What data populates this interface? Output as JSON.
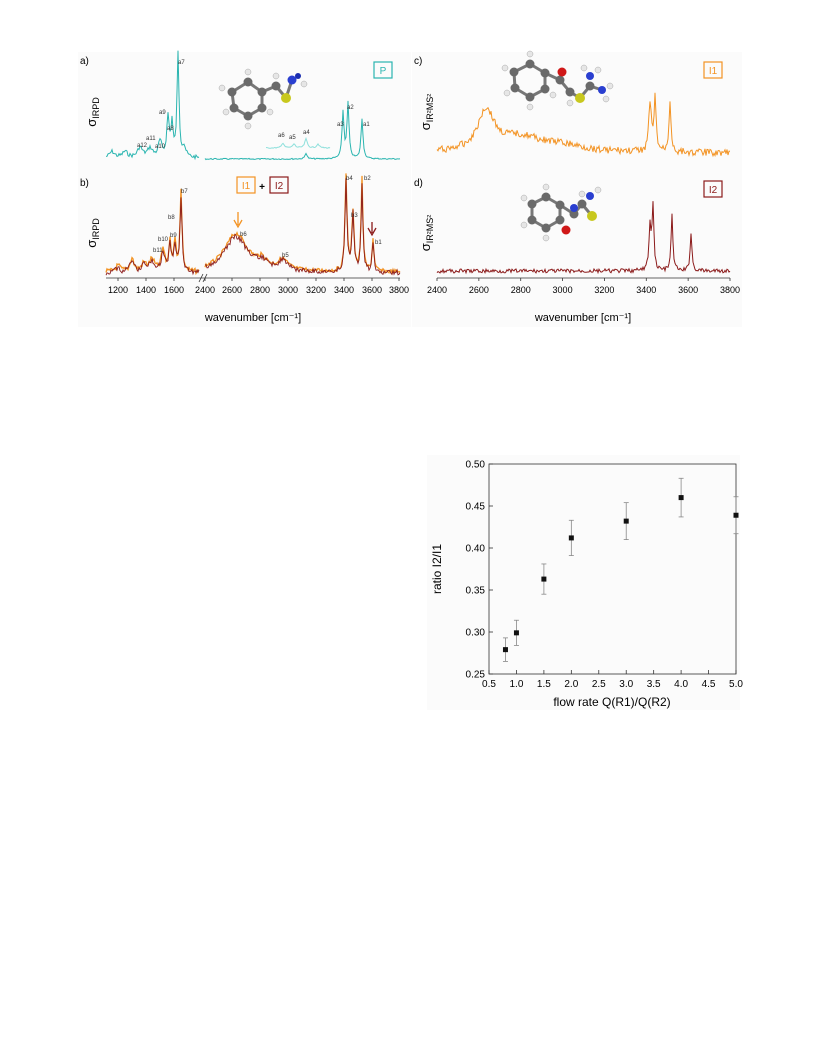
{
  "figure": {
    "panels": {
      "a": {
        "letter": "a)",
        "ylabel_sym": "σ",
        "ylabel_sub": "IRPD",
        "badge": "P",
        "badge_color": "#2ab5b0",
        "peaks": [
          "a1",
          "a2",
          "a3",
          "a4",
          "a5",
          "a6",
          "a7",
          "a8",
          "a9",
          "a10",
          "a11",
          "a12"
        ]
      },
      "b": {
        "letter": "b)",
        "ylabel_sym": "σ",
        "ylabel_sub": "IRPD",
        "badge1": "I1",
        "plus": "+",
        "badge2": "I2",
        "badge1_color": "#f39323",
        "badge2_color": "#8b1a1a",
        "peaks": [
          "b1",
          "b2",
          "b3",
          "b4",
          "b5",
          "b6",
          "b7",
          "b8",
          "b9",
          "b10",
          "b11"
        ]
      },
      "c": {
        "letter": "c)",
        "ylabel_sym": "σ",
        "ylabel_sub": "IR²MS²",
        "badge": "I1",
        "badge_color": "#f39323"
      },
      "d": {
        "letter": "d)",
        "ylabel_sym": "σ",
        "ylabel_sub": "IR²MS²",
        "badge": "I2",
        "badge_color": "#8b1a1a"
      }
    },
    "left_ticks": [
      "1200",
      "1400",
      "1600",
      "2400",
      "2600",
      "2800",
      "3000",
      "3200",
      "3400",
      "3600",
      "3800"
    ],
    "right_ticks": [
      "2400",
      "2600",
      "2800",
      "3000",
      "3200",
      "3400",
      "3600",
      "3800"
    ],
    "xlabel": "wavenumber [cm⁻¹]"
  },
  "chart_data": {
    "type": "scatter",
    "xlabel": "flow rate Q(R1)/Q(R2)",
    "ylabel": "ratio I2/I1",
    "xlim": [
      0.5,
      5.0
    ],
    "ylim": [
      0.25,
      0.5
    ],
    "xticks": [
      "0.5",
      "1.0",
      "1.5",
      "2.0",
      "2.5",
      "3.0",
      "3.5",
      "4.0",
      "4.5",
      "5.0"
    ],
    "yticks": [
      "0.25",
      "0.30",
      "0.35",
      "0.40",
      "0.45",
      "0.50"
    ],
    "grid": false,
    "x": [
      0.8,
      1.0,
      1.5,
      2.0,
      3.0,
      4.0,
      5.0
    ],
    "y": [
      0.279,
      0.299,
      0.363,
      0.412,
      0.432,
      0.46,
      0.439
    ],
    "error": [
      0.014,
      0.015,
      0.018,
      0.021,
      0.022,
      0.023,
      0.022
    ]
  }
}
